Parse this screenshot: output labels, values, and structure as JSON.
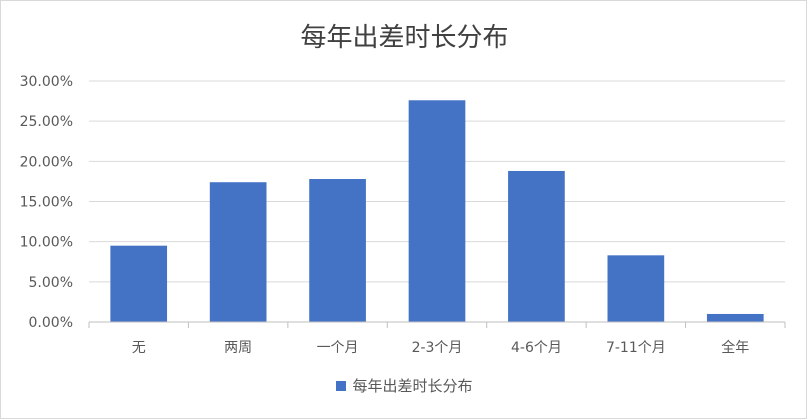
{
  "chart_data": {
    "type": "bar",
    "title": "每年出差时长分布",
    "categories": [
      "无",
      "两周",
      "一个月",
      "2-3个月",
      "4-6个月",
      "7-11个月",
      "全年"
    ],
    "series": [
      {
        "name": "每年出差时长分布",
        "values": [
          9.5,
          17.4,
          17.8,
          27.6,
          18.8,
          8.3,
          1.0
        ],
        "color": "#4472c4"
      }
    ],
    "ylim": [
      0,
      30
    ],
    "ytick_step": 5,
    "ytick_labels": [
      "0.00%",
      "5.00%",
      "10.00%",
      "15.00%",
      "20.00%",
      "25.00%",
      "30.00%"
    ],
    "grid": true,
    "legend": "bottom"
  }
}
